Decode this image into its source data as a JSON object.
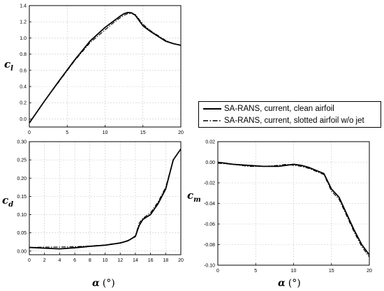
{
  "legend": {
    "entries": [
      {
        "label": "SA-RANS, current, clean airfoil",
        "style": "solid"
      },
      {
        "label": "SA-RANS, current, slotted airfoil w/o jet",
        "style": "dashdot"
      }
    ]
  },
  "xlabel": {
    "symbol": "α",
    "unit": "(°)"
  },
  "chart_data": [
    {
      "type": "line",
      "id": "cl",
      "ylabel": {
        "base": "c",
        "sub": "l"
      },
      "xlabel": "",
      "xlim": [
        0,
        20
      ],
      "ylim": [
        -0.1,
        1.4
      ],
      "xticks": [
        "0",
        "5",
        "10",
        "15",
        "20"
      ],
      "yticks": [
        "0.0",
        "0.2",
        "0.4",
        "0.6",
        "0.8",
        "1.0",
        "1.2",
        "1.4"
      ],
      "grid": true,
      "series": [
        {
          "style": "solid",
          "x": [
            0,
            2,
            4,
            6,
            8,
            10,
            11,
            12,
            12.5,
            13,
            13.5,
            14,
            15,
            16,
            17,
            18,
            19,
            20
          ],
          "y": [
            -0.05,
            0.22,
            0.48,
            0.73,
            0.96,
            1.13,
            1.2,
            1.27,
            1.3,
            1.315,
            1.31,
            1.28,
            1.15,
            1.08,
            1.02,
            0.96,
            0.93,
            0.91
          ]
        },
        {
          "style": "dashdot",
          "x": [
            0,
            2,
            4,
            6,
            8,
            10,
            11,
            12,
            12.5,
            13,
            13.5,
            14,
            15,
            16,
            17,
            18,
            19,
            20
          ],
          "y": [
            -0.05,
            0.22,
            0.47,
            0.72,
            0.94,
            1.1,
            1.18,
            1.25,
            1.28,
            1.3,
            1.3,
            1.29,
            1.17,
            1.09,
            1.03,
            0.97,
            0.93,
            0.91
          ]
        }
      ]
    },
    {
      "type": "line",
      "id": "cd",
      "ylabel": {
        "base": "c",
        "sub": "d"
      },
      "xlabel": "",
      "xlim": [
        0,
        20
      ],
      "ylim": [
        -0.01,
        0.3
      ],
      "xticks": [
        "0",
        "2",
        "4",
        "6",
        "8",
        "10",
        "12",
        "14",
        "16",
        "18",
        "20"
      ],
      "yticks": [
        "0.00",
        "0.05",
        "0.10",
        "0.15",
        "0.20",
        "0.25",
        "0.30"
      ],
      "grid": true,
      "series": [
        {
          "style": "solid",
          "x": [
            0,
            2,
            4,
            6,
            8,
            10,
            12,
            13,
            13.5,
            14,
            14.5,
            15,
            16,
            17,
            18,
            19,
            20
          ],
          "y": [
            0.01,
            0.008,
            0.006,
            0.009,
            0.013,
            0.016,
            0.022,
            0.028,
            0.034,
            0.04,
            0.07,
            0.087,
            0.1,
            0.13,
            0.17,
            0.25,
            0.28
          ]
        },
        {
          "style": "dashdot",
          "x": [
            0,
            2,
            4,
            6,
            8,
            10,
            12,
            13,
            13.5,
            14,
            14.5,
            15,
            16,
            17,
            18,
            19,
            20
          ],
          "y": [
            0.01,
            0.011,
            0.011,
            0.012,
            0.014,
            0.017,
            0.023,
            0.029,
            0.035,
            0.042,
            0.077,
            0.09,
            0.105,
            0.135,
            0.175,
            0.25,
            0.28
          ]
        }
      ]
    },
    {
      "type": "line",
      "id": "cm",
      "ylabel": {
        "base": "c",
        "sub": "m"
      },
      "xlabel": "",
      "xlim": [
        0,
        20
      ],
      "ylim": [
        -0.1,
        0.02
      ],
      "xticks": [
        "0",
        "5",
        "10",
        "15",
        "20"
      ],
      "yticks": [
        "0.02",
        "0.00",
        "-0.02",
        "-0.04",
        "-0.06",
        "-0.08",
        "-0.10"
      ],
      "grid": true,
      "series": [
        {
          "style": "solid",
          "x": [
            0,
            2,
            4,
            6,
            8,
            9,
            10,
            11,
            12,
            13,
            14,
            15,
            16,
            17,
            18,
            19,
            20
          ],
          "y": [
            0.0,
            -0.002,
            -0.003,
            -0.004,
            -0.004,
            -0.003,
            -0.002,
            -0.003,
            -0.005,
            -0.008,
            -0.011,
            -0.026,
            -0.034,
            -0.05,
            -0.066,
            -0.08,
            -0.09
          ]
        },
        {
          "style": "dashdot",
          "x": [
            0,
            2,
            4,
            6,
            8,
            9,
            10,
            11,
            12,
            13,
            14,
            15,
            16,
            17,
            18,
            19,
            20
          ],
          "y": [
            -0.001,
            -0.002,
            -0.004,
            -0.004,
            -0.003,
            -0.002,
            -0.003,
            -0.004,
            -0.006,
            -0.009,
            -0.012,
            -0.028,
            -0.036,
            -0.052,
            -0.068,
            -0.082,
            -0.092
          ]
        }
      ]
    }
  ]
}
